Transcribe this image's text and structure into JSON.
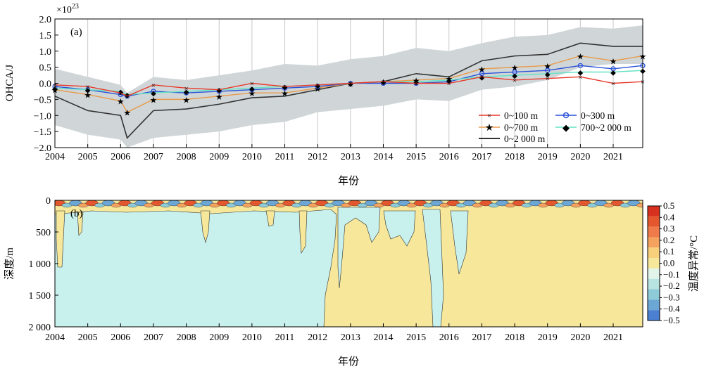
{
  "panel_a": {
    "panel_label": "(a)",
    "exponent_label": "×10",
    "exponent_power": "23",
    "ylabel": "OHCA/J",
    "xlabel": "年份"
  },
  "panel_b": {
    "panel_label": "(b)",
    "ylabel": "深度/m",
    "xlabel": "年份",
    "colorbar_label": "温度异常/°C"
  },
  "colors": {
    "s0_100": "#e8382a",
    "s0_300": "#2a52d9",
    "s0_700": "#e89a4a",
    "s700_2000": "#62e2c4",
    "s0_2000": "#333333",
    "band": "#d0d6d8",
    "warm": "#f6e79a",
    "cool": "#c8f0ec"
  },
  "chart_data": [
    {
      "type": "line",
      "panel": "a",
      "xlabel": "年份",
      "ylabel": "OHCA/J",
      "y_exponent": "×10^23",
      "xlim": [
        2004,
        2021.9
      ],
      "ylim": [
        -2.0,
        2.0
      ],
      "xticks": [
        "2004",
        "2005",
        "2006",
        "2007",
        "2008",
        "2009",
        "2010",
        "2011",
        "2012",
        "2013",
        "2014",
        "2015",
        "2016",
        "2017",
        "2018",
        "2019",
        "2020",
        "2021"
      ],
      "yticks": [
        "2.0",
        "1.5",
        "1.0",
        "0.5",
        "0.0",
        "−0.5",
        "−1.0",
        "−1.5",
        "−2.0"
      ],
      "grid": "vertical lines at each year",
      "legend_position": "lower-right",
      "x": [
        2004,
        2005,
        2006,
        2006.2,
        2007,
        2008,
        2009,
        2010,
        2011,
        2012,
        2013,
        2014,
        2015,
        2016,
        2017,
        2018,
        2019,
        2020,
        2021,
        2021.9
      ],
      "series": [
        {
          "name": "0~100 m",
          "marker": "x",
          "color_key": "s0_100",
          "values": [
            -0.05,
            -0.1,
            -0.3,
            -0.4,
            -0.05,
            -0.15,
            -0.2,
            0.0,
            -0.1,
            -0.05,
            0.0,
            0.05,
            0.0,
            0.0,
            0.2,
            0.1,
            0.15,
            0.2,
            0.0,
            0.05
          ]
        },
        {
          "name": "0~300 m",
          "marker": "o",
          "color_key": "s0_300",
          "values": [
            -0.1,
            -0.2,
            -0.35,
            -0.4,
            -0.25,
            -0.3,
            -0.25,
            -0.2,
            -0.15,
            -0.1,
            0.0,
            0.0,
            0.0,
            0.05,
            0.3,
            0.35,
            0.4,
            0.55,
            0.45,
            0.55
          ]
        },
        {
          "name": "0~700 m",
          "marker": "*",
          "color_key": "s0_700",
          "values": [
            -0.2,
            -0.35,
            -0.55,
            -0.9,
            -0.5,
            -0.5,
            -0.4,
            -0.3,
            -0.3,
            -0.15,
            0.0,
            0.05,
            0.1,
            0.15,
            0.45,
            0.5,
            0.55,
            0.85,
            0.7,
            0.85
          ]
        },
        {
          "name": "700~2 000 m",
          "marker": "diamond",
          "color_key": "s700_2000",
          "values": [
            -0.15,
            -0.2,
            -0.25,
            -0.35,
            -0.3,
            -0.25,
            -0.2,
            -0.15,
            -0.1,
            -0.05,
            0.0,
            0.05,
            0.05,
            0.1,
            0.2,
            0.25,
            0.3,
            0.35,
            0.35,
            0.4
          ]
        },
        {
          "name": "0~2 000 m",
          "marker": "none",
          "color_key": "s0_2000",
          "values": [
            -0.4,
            -0.85,
            -1.0,
            -1.7,
            -0.85,
            -0.8,
            -0.65,
            -0.45,
            -0.4,
            -0.2,
            0.0,
            0.05,
            0.3,
            0.2,
            0.7,
            0.85,
            0.9,
            1.25,
            1.15,
            1.15
          ]
        }
      ],
      "uncertainty_band": {
        "upper": [
          0.45,
          0.2,
          -0.05,
          -0.3,
          0.2,
          0.1,
          0.25,
          0.4,
          0.6,
          0.55,
          0.75,
          0.85,
          1.1,
          1.0,
          1.25,
          1.45,
          1.5,
          1.75,
          1.7,
          1.8
        ],
        "lower": [
          -1.3,
          -1.6,
          -1.75,
          -2.0,
          -1.7,
          -1.6,
          -1.5,
          -1.3,
          -1.2,
          -0.9,
          -0.8,
          -0.7,
          -0.5,
          -0.55,
          -0.2,
          -0.1,
          0.1,
          0.5,
          0.6,
          0.6
        ]
      }
    },
    {
      "type": "heatmap",
      "panel": "b",
      "xlabel": "年份",
      "ylabel": "深度/m",
      "colorbar_label": "温度异常/°C",
      "xlim": [
        2004,
        2021.9
      ],
      "ylim": [
        2000,
        0
      ],
      "xticks": [
        "2004",
        "2005",
        "2006",
        "2007",
        "2008",
        "2009",
        "2010",
        "2011",
        "2012",
        "2013",
        "2014",
        "2015",
        "2016",
        "2017",
        "2018",
        "2019",
        "2020",
        "2021"
      ],
      "yticks": [
        "0",
        "500",
        "1 000",
        "1 500",
        "2 000"
      ],
      "colorbar_ticks": [
        "0.5",
        "0.4",
        "0.3",
        "0.2",
        "0.1",
        "0.0",
        "−0.1",
        "−0.2",
        "−0.3",
        "−0.4",
        "−0.5"
      ],
      "colorbar_colors": [
        "#d7301f",
        "#e4572e",
        "#ef7a4a",
        "#f5a25e",
        "#f8cf7a",
        "#f6e79a",
        "#e2f3ea",
        "#b7e4e1",
        "#8ecbd8",
        "#6ba6d4",
        "#4a7fd2"
      ],
      "summary": {
        "period_2004_2012": "mostly −0.1 to 0.0 °C (cool) below 200 m with thin warm intrusions",
        "period_2013_2021": "mostly 0.0 to 0.1 °C (warm) throughout the column",
        "surface_layer": "alternating ±0.5 °C anomalies in top ~100 m"
      }
    }
  ]
}
